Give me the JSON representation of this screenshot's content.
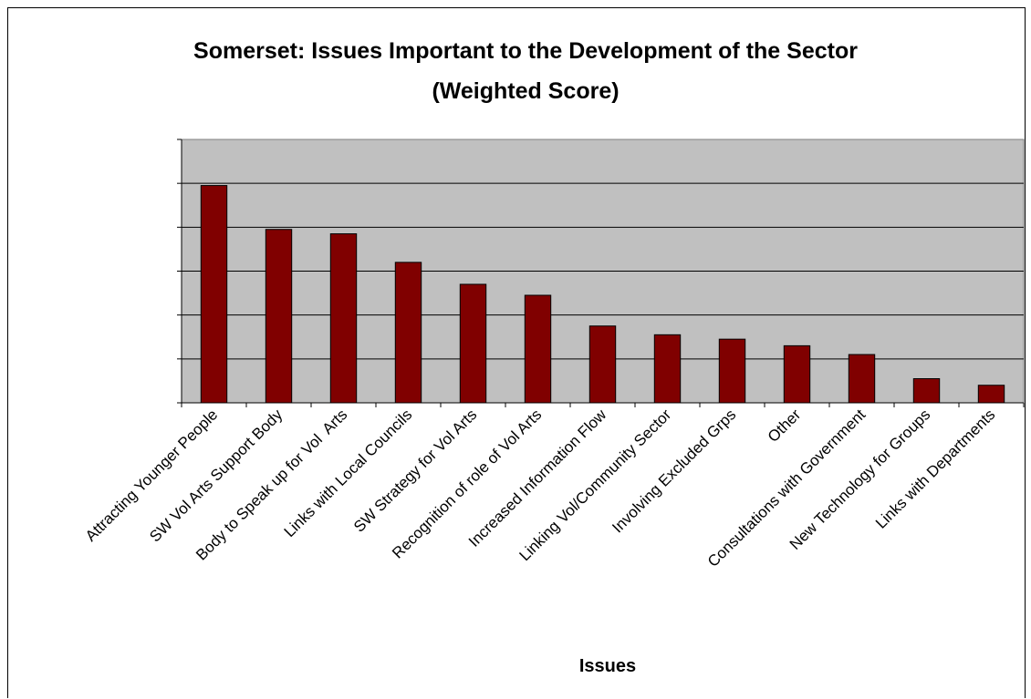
{
  "chart_data": {
    "type": "bar",
    "title": "Somerset: Issues Important to the Development of the Sector",
    "subtitle": "(Weighted Score)",
    "xlabel": "Issues",
    "ylabel": "",
    "categories": [
      "Attracting Younger People",
      "SW Vol Arts Support Body",
      "Body to Speak up for Vol  Arts",
      "Links with Local Councils",
      "SW Strategy for Vol Arts",
      "Recognition of role of Vol Arts",
      "Increased Information Flow",
      "Linking Vol/Community Sector",
      "Involving Excluded Grps",
      "Other",
      "Consultations with Government",
      "New Technology for Groups",
      "Links with Departments"
    ],
    "values": [
      99,
      79,
      77,
      64,
      54,
      49,
      35,
      31,
      29,
      26,
      22,
      11,
      8
    ],
    "ylim": [
      0,
      120
    ],
    "grid": true,
    "legend": "none",
    "colors": {
      "bar_fill": "#800000",
      "plot_background": "#c0c0c0",
      "gridline": "#000000"
    }
  }
}
